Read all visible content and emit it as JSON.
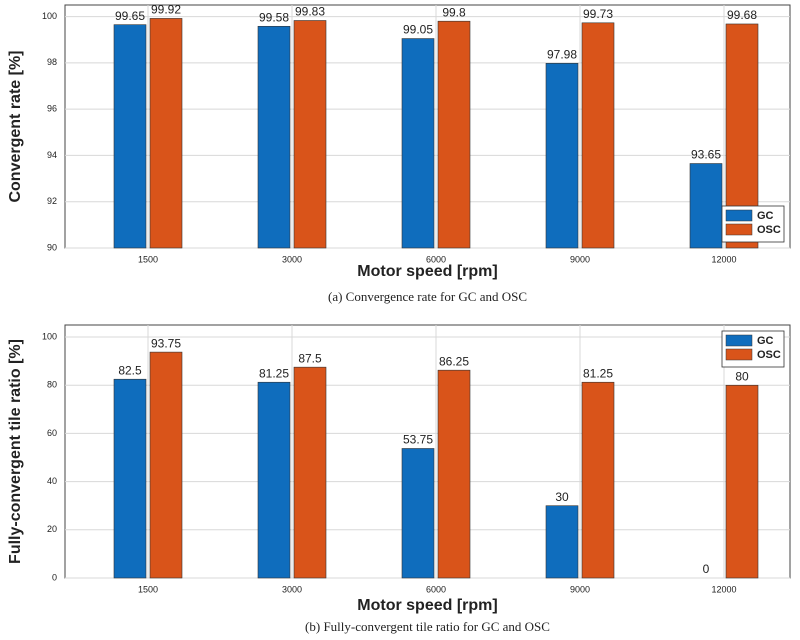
{
  "chart_data": [
    {
      "type": "bar",
      "ylabel": "Convergent rate [%]",
      "xlabel": "Motor speed [rpm]",
      "caption": "(a) Convergence rate for GC and OSC",
      "categories": [
        "1500",
        "3000",
        "6000",
        "9000",
        "12000"
      ],
      "series": [
        {
          "name": "GC",
          "color": "#0f6dbd",
          "values": [
            99.65,
            99.58,
            99.05,
            97.98,
            93.65
          ]
        },
        {
          "name": "OSC",
          "color": "#d9541a",
          "values": [
            99.92,
            99.83,
            99.8,
            99.73,
            99.68
          ]
        }
      ],
      "ylim": [
        90,
        100.5
      ],
      "yticks": [
        90,
        92,
        94,
        96,
        98,
        100
      ],
      "grid": true,
      "legend": "lower right"
    },
    {
      "type": "bar",
      "ylabel": "Fully-convergent tile ratio [%]",
      "xlabel": "Motor speed [rpm]",
      "caption": "(b) Fully-convergent tile ratio for GC and OSC",
      "categories": [
        "1500",
        "3000",
        "6000",
        "9000",
        "12000"
      ],
      "series": [
        {
          "name": "GC",
          "color": "#0f6dbd",
          "values": [
            82.5,
            81.25,
            53.75,
            30,
            0
          ]
        },
        {
          "name": "OSC",
          "color": "#d9541a",
          "values": [
            93.75,
            87.5,
            86.25,
            81.25,
            80
          ]
        }
      ],
      "ylim": [
        0,
        105
      ],
      "yticks": [
        0,
        20,
        40,
        60,
        80,
        100
      ],
      "grid": true,
      "legend": "upper right"
    }
  ]
}
